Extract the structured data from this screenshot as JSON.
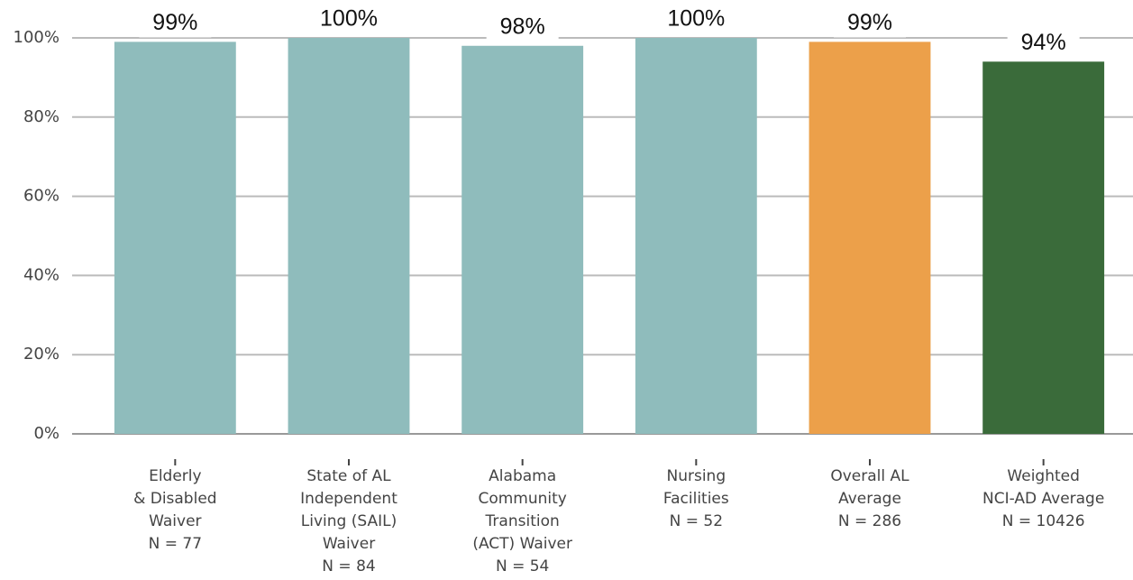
{
  "chart_data": {
    "type": "bar",
    "categories": [
      [
        "Elderly",
        "& Disabled",
        "Waiver",
        "N = 77"
      ],
      [
        "State of AL",
        "Independent",
        "Living (SAIL)",
        "Waiver",
        "N = 84"
      ],
      [
        "Alabama",
        "Community",
        "Transition",
        "(ACT) Waiver",
        "N = 54"
      ],
      [
        "Nursing",
        "Facilities",
        "N = 52"
      ],
      [
        "Overall AL",
        "Average",
        "N = 286"
      ],
      [
        "Weighted",
        "NCI-AD Average",
        "N = 10426"
      ]
    ],
    "values": [
      99,
      100,
      98,
      100,
      99,
      94
    ],
    "value_labels": [
      "99%",
      "100%",
      "98%",
      "100%",
      "99%",
      "94%"
    ],
    "colors": [
      "#8fbcbc",
      "#8fbcbc",
      "#8fbcbc",
      "#8fbcbc",
      "#eca04a",
      "#3a6b3a"
    ],
    "ylim": [
      0,
      100
    ],
    "yticks": [
      {
        "value": 0,
        "label": "0%"
      },
      {
        "value": 20,
        "label": "20%"
      },
      {
        "value": 40,
        "label": "40%"
      },
      {
        "value": 60,
        "label": "60%"
      },
      {
        "value": 80,
        "label": "80%"
      },
      {
        "value": 100,
        "label": "100%"
      }
    ],
    "grid": true
  }
}
